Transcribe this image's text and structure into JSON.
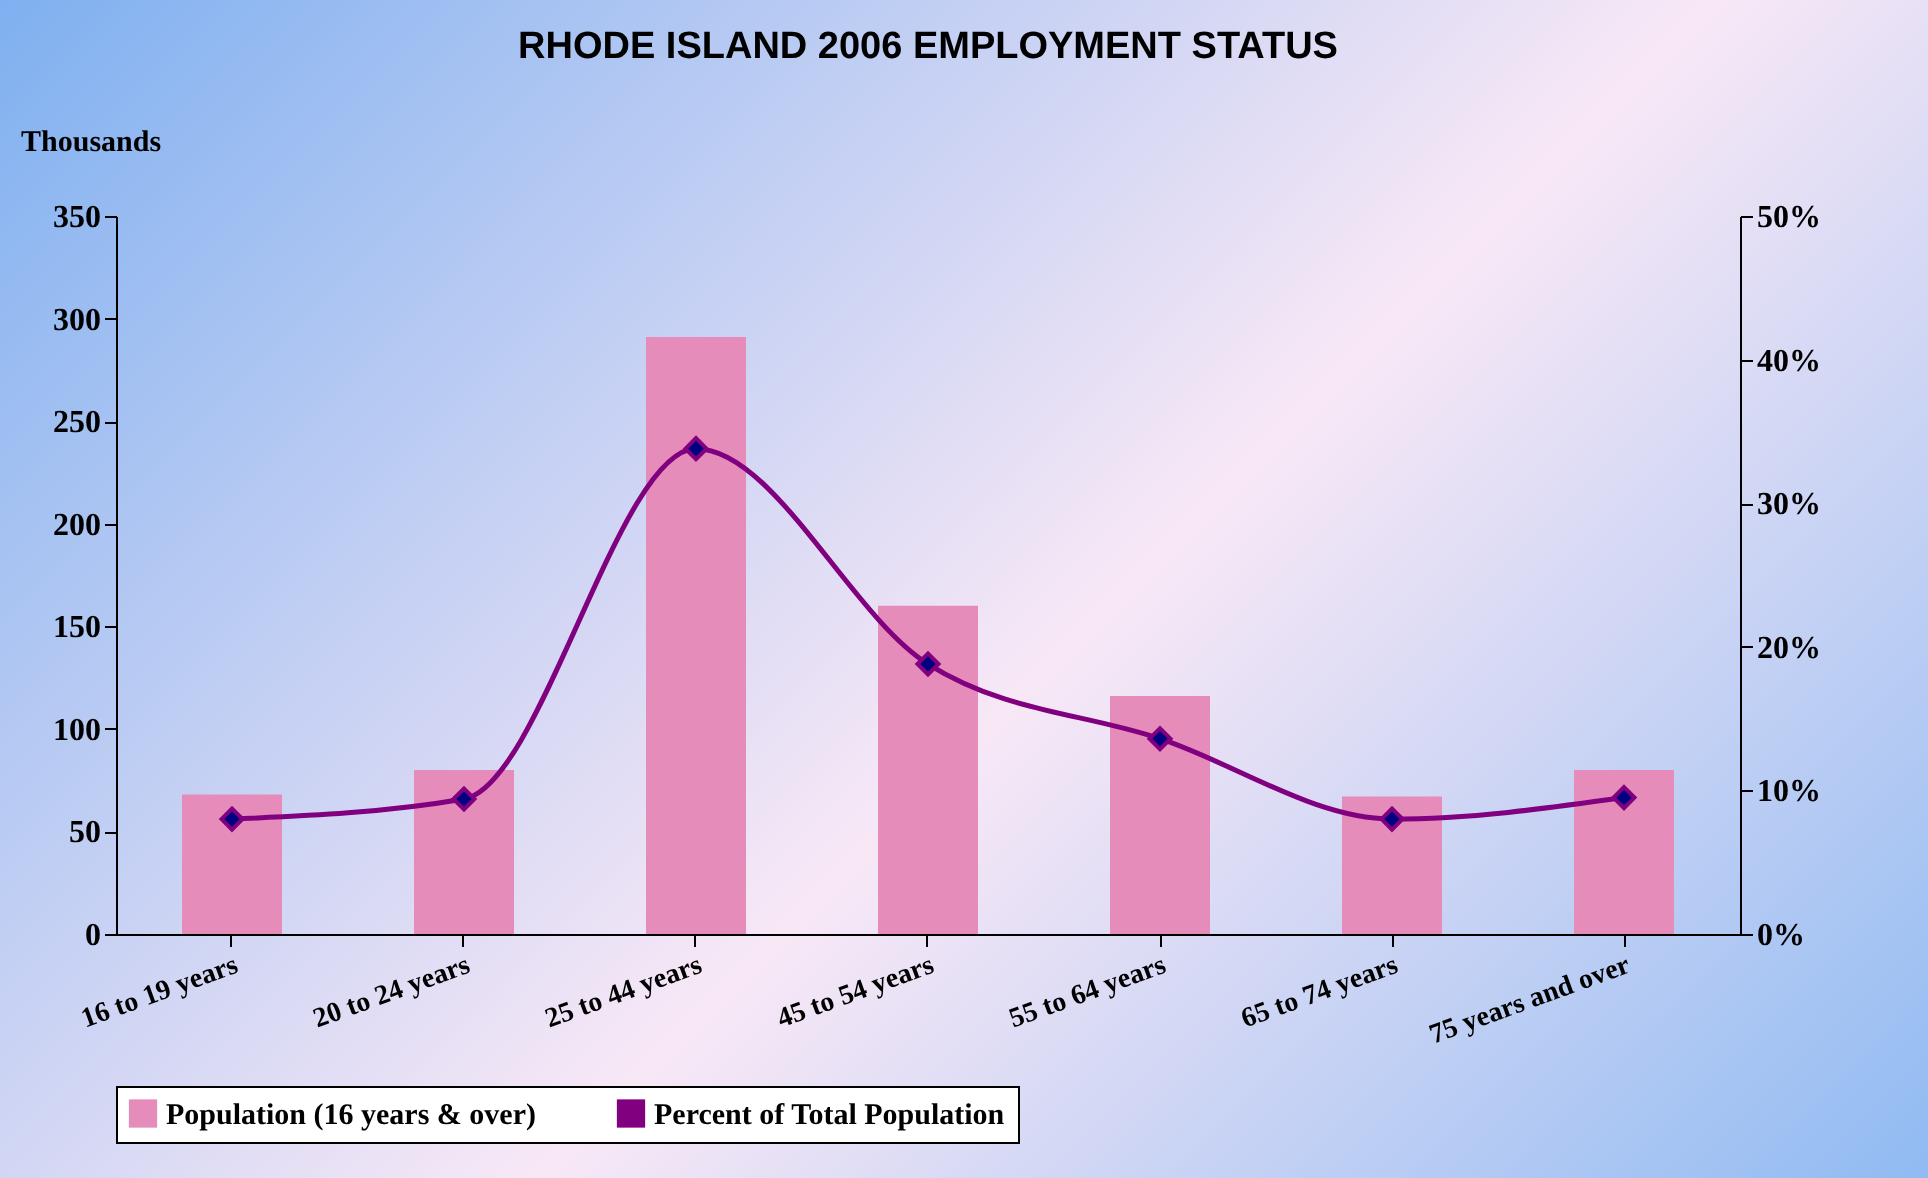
{
  "chart_data": {
    "type": "bar",
    "title": "RHODE ISLAND 2006 EMPLOYMENT STATUS",
    "ylabel": "Thousands",
    "categories": [
      "16 to 19 years",
      "20 to 24 years",
      "25 to 44 years",
      "45 to 54 years",
      "55 to 64 years",
      "65 to 74 years",
      "75 years and over"
    ],
    "series": [
      {
        "name": "Population (16 years & over)",
        "color": "#e58cbb",
        "values": [
          68,
          80,
          291,
          160,
          116,
          67,
          80
        ]
      },
      {
        "name": "Percent of Total Population",
        "type": "line",
        "axis": "y2",
        "color": "#800080",
        "values": [
          8.0,
          9.4,
          33.8,
          18.8,
          13.6,
          8.0,
          9.5
        ]
      }
    ],
    "ylim": [
      0,
      350
    ],
    "yticks": [
      0,
      50,
      100,
      150,
      200,
      250,
      300,
      350
    ],
    "y2lim": [
      0,
      50
    ],
    "y2ticks": [
      {
        "value": 0,
        "label": "0%"
      },
      {
        "value": 10,
        "label": "10%"
      },
      {
        "value": 20,
        "label": "20%"
      },
      {
        "value": 30,
        "label": "30%"
      },
      {
        "value": 40,
        "label": "40%"
      },
      {
        "value": 50,
        "label": "50%"
      }
    ],
    "marker": "diamond",
    "legend": "bottom",
    "grid": false
  }
}
